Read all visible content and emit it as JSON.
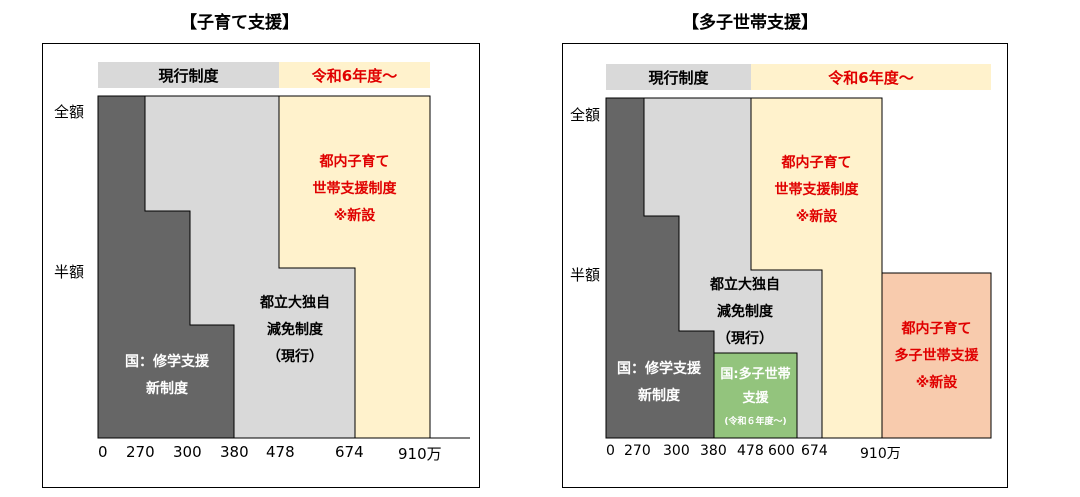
{
  "left": {
    "title": "【子育て支援】",
    "header_current": "現行制度",
    "header_new": "令和6年度～",
    "y_full": "全額",
    "y_half": "半額",
    "national_line1": "国：修学支援",
    "national_line2": "新制度",
    "tmu_line1": "都立大独自",
    "tmu_line2": "減免制度",
    "tmu_line3": "（現行）",
    "tokyo_line1": "都内子育て",
    "tokyo_line2": "世帯支援制度",
    "tokyo_line3": "※新設",
    "x_labels": [
      "0",
      "270",
      "300",
      "380",
      "478",
      "674",
      "910万"
    ]
  },
  "right": {
    "title": "【多子世帯支援】",
    "header_current": "現行制度",
    "header_new": "令和6年度～",
    "y_full": "全額",
    "y_half": "半額",
    "national_line1": "国：修学支援",
    "national_line2": "新制度",
    "tmu_line1": "都立大独自",
    "tmu_line2": "減免制度",
    "tmu_line3": "（現行）",
    "multi_line1": "国:多子世帯",
    "multi_line2": "支援",
    "multi_line3": "(令和６年度～)",
    "tokyo_line1": "都内子育て",
    "tokyo_line2": "世帯支援制度",
    "tokyo_line3": "※新設",
    "multi_tokyo_line1": "都内子育て",
    "multi_tokyo_line2": "多子世帯支援",
    "multi_tokyo_line3": "※新設",
    "x_labels": [
      "0",
      "270",
      "300",
      "380",
      "478",
      "600",
      "674",
      "910万"
    ]
  },
  "colors": {
    "national": "#666666",
    "tmu": "#d9d9d9",
    "tokyo": "#fff2cc",
    "multi_national": "#93c47d",
    "multi_tokyo": "#f8cbad",
    "new_text": "#e00000"
  }
}
